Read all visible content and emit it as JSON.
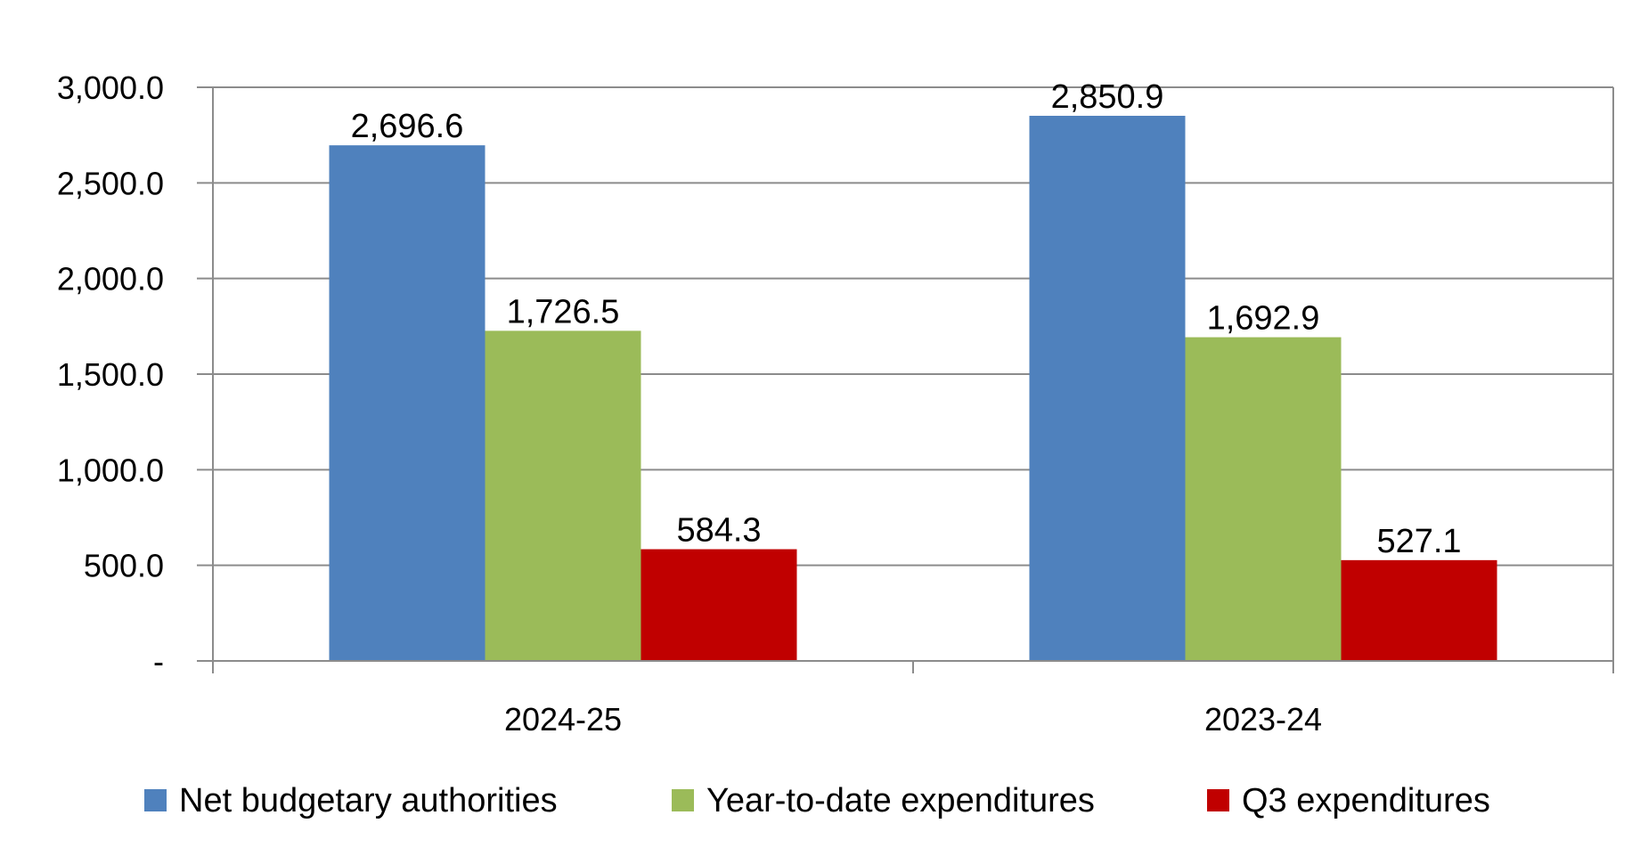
{
  "chart_data": {
    "type": "bar",
    "categories": [
      "2024-25",
      "2023-24"
    ],
    "series": [
      {
        "name": "Net budgetary authorities",
        "values": [
          2696.6,
          2850.9
        ],
        "color": "#4F81BD",
        "labels": [
          "2,696.6",
          "2,850.9"
        ]
      },
      {
        "name": "Year-to-date expenditures",
        "values": [
          1726.5,
          1692.9
        ],
        "color": "#9BBB59",
        "labels": [
          "1,726.5",
          "1,692.9"
        ]
      },
      {
        "name": "Q3 expenditures",
        "values": [
          584.3,
          527.1
        ],
        "color": "#C00000",
        "labels": [
          "584.3",
          "527.1"
        ]
      }
    ],
    "ylim": [
      0,
      3000
    ],
    "yticks": [
      0,
      500,
      1000,
      1500,
      2000,
      2500,
      3000
    ],
    "ytick_labels": [
      "-",
      "500.0",
      "1,000.0",
      "1,500.0",
      "2,000.0",
      "2,500.0",
      "3,000.0"
    ],
    "grid": true,
    "legend_position": "bottom"
  }
}
